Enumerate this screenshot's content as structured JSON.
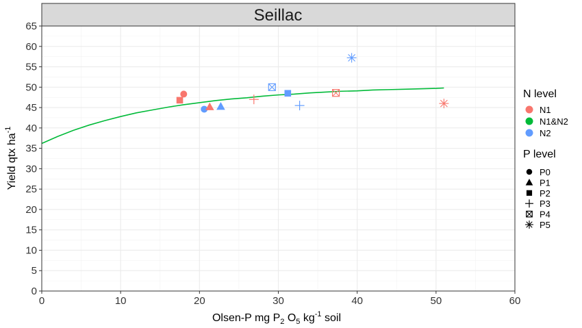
{
  "chart_data": {
    "type": "scatter",
    "facet_title": "Seillac",
    "xlabel": {
      "main": "Olsen-P   mg P",
      "sub": "2",
      "mid": " O",
      "sub2": "5",
      "end": " kg",
      "sup": "-1",
      "tail": " soil"
    },
    "ylabel": {
      "main": "Yield  qtx ha",
      "sup": "-1"
    },
    "xlim": [
      0,
      60
    ],
    "ylim": [
      0,
      65
    ],
    "x_ticks": [
      0,
      10,
      20,
      30,
      40,
      50,
      60
    ],
    "y_ticks": [
      0,
      5,
      10,
      15,
      20,
      25,
      30,
      35,
      40,
      45,
      50,
      55,
      60,
      65
    ],
    "grid": true,
    "legend_position": "right",
    "colors": {
      "N1": "#F8766D",
      "N1&N2": "#00BA38",
      "N2": "#619CFF"
    },
    "n_level_legend": {
      "title": "N level",
      "items": [
        "N1",
        "N1&N2",
        "N2"
      ]
    },
    "p_level_legend": {
      "title": "P level",
      "items": [
        "P0",
        "P1",
        "P2",
        "P3",
        "P4",
        "P5"
      ]
    },
    "points": [
      {
        "x": 18.0,
        "y": 48.3,
        "n": "N1",
        "p": "P0"
      },
      {
        "x": 20.6,
        "y": 44.6,
        "n": "N2",
        "p": "P0"
      },
      {
        "x": 21.3,
        "y": 45.2,
        "n": "N1",
        "p": "P1"
      },
      {
        "x": 22.7,
        "y": 45.3,
        "n": "N2",
        "p": "P1"
      },
      {
        "x": 17.5,
        "y": 46.8,
        "n": "N1",
        "p": "P2"
      },
      {
        "x": 31.2,
        "y": 48.5,
        "n": "N2",
        "p": "P2"
      },
      {
        "x": 26.9,
        "y": 47.0,
        "n": "N1",
        "p": "P3"
      },
      {
        "x": 32.7,
        "y": 45.5,
        "n": "N2",
        "p": "P3"
      },
      {
        "x": 29.2,
        "y": 50.0,
        "n": "N2",
        "p": "P4"
      },
      {
        "x": 37.3,
        "y": 48.6,
        "n": "N1",
        "p": "P4"
      },
      {
        "x": 39.3,
        "y": 57.2,
        "n": "N2",
        "p": "P5"
      },
      {
        "x": 51.0,
        "y": 46.0,
        "n": "N1",
        "p": "P5"
      }
    ],
    "fit_curve": {
      "group": "N1&N2",
      "x": [
        0,
        2,
        4,
        6,
        8,
        10,
        12,
        14,
        16,
        18,
        20,
        22,
        24,
        26,
        28,
        30,
        32,
        34,
        36,
        38,
        40,
        42,
        44,
        46,
        48,
        50,
        51
      ],
      "y": [
        36.2,
        37.9,
        39.4,
        40.7,
        41.8,
        42.8,
        43.7,
        44.4,
        45.1,
        45.7,
        46.2,
        46.7,
        47.1,
        47.4,
        47.8,
        48.1,
        48.3,
        48.6,
        48.8,
        49.0,
        49.1,
        49.3,
        49.4,
        49.5,
        49.6,
        49.7,
        49.8
      ]
    }
  }
}
